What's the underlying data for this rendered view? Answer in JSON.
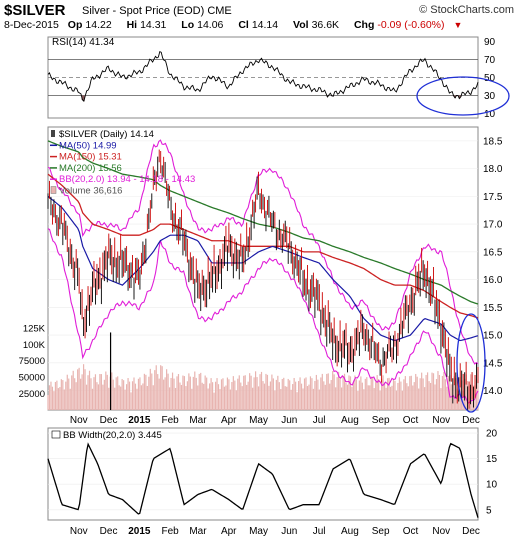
{
  "header": {
    "symbol": "$SILVER",
    "description": "Silver - Spot Price (EOD)",
    "exchange": "CME",
    "date": "8-Dec-2015",
    "open_label": "Op",
    "open": "14.22",
    "high_label": "Hi",
    "high": "14.31",
    "low_label": "Lo",
    "low": "14.06",
    "close_label": "Cl",
    "close": "14.14",
    "vol_label": "Vol",
    "volume": "36.6K",
    "chg_label": "Chg",
    "change": "-0.09 (-0.60%)",
    "logo": "© StockCharts.com"
  },
  "colors": {
    "price_up": "#000000",
    "price_down": "#cc0000",
    "ma50": "#1a1aa6",
    "ma150": "#cc2222",
    "ma200": "#2a7a2a",
    "bb": "#e01ed8",
    "volume": "#e8b4b0",
    "rsi_fill": "#8b5a5a",
    "annotation": "#1f2fd6"
  },
  "chart_data": [
    {
      "type": "line",
      "panel": "rsi",
      "label": "RSI(14) 41.34",
      "ylim": [
        5,
        95
      ],
      "yticks": [
        90,
        70,
        50,
        30,
        10
      ],
      "grid": "horizontal at 70, 50 (dashed), 30",
      "x": [
        "2014-10-01",
        "2014-10-15",
        "2014-11-01",
        "2014-11-05",
        "2014-11-15",
        "2014-12-01",
        "2014-12-15",
        "2015-01-01",
        "2015-01-15",
        "2015-01-22",
        "2015-02-01",
        "2015-02-15",
        "2015-03-01",
        "2015-03-15",
        "2015-04-01",
        "2015-04-15",
        "2015-05-01",
        "2015-05-15",
        "2015-06-01",
        "2015-06-15",
        "2015-07-01",
        "2015-07-15",
        "2015-08-01",
        "2015-08-15",
        "2015-09-01",
        "2015-09-15",
        "2015-10-01",
        "2015-10-15",
        "2015-11-01",
        "2015-11-10",
        "2015-11-20",
        "2015-12-01",
        "2015-12-08"
      ],
      "y": [
        52,
        44,
        34,
        25,
        48,
        60,
        50,
        56,
        70,
        78,
        54,
        40,
        36,
        52,
        40,
        58,
        70,
        62,
        45,
        40,
        36,
        30,
        40,
        48,
        42,
        34,
        58,
        70,
        48,
        32,
        29,
        35,
        41.34
      ],
      "note": "RSI region below 30 shaded"
    },
    {
      "type": "line",
      "panel": "price",
      "legend": [
        {
          "key": "price",
          "label": "$SILVER (Daily) 14.14"
        },
        {
          "key": "ma50",
          "label": "MA(50) 14.99"
        },
        {
          "key": "ma150",
          "label": "MA(150) 15.31"
        },
        {
          "key": "ma200",
          "label": "MA(200) 15.56"
        },
        {
          "key": "bb",
          "label": "BB(20,2.0) 13.94 - 14.18 - 14.43"
        },
        {
          "key": "volume",
          "label": "Volume 36,616"
        }
      ],
      "ylim": [
        13.65,
        18.75
      ],
      "yticks": [
        18.5,
        18.0,
        17.5,
        17.0,
        16.5,
        16.0,
        15.5,
        15.0,
        14.5,
        14.0
      ],
      "volume_ticks": [
        "125K",
        "100K",
        "75000",
        "50000",
        "25000"
      ],
      "volume_tick_values": [
        125000,
        100000,
        75000,
        50000,
        25000
      ],
      "x": [
        "2014-10-01",
        "2014-10-15",
        "2014-11-01",
        "2014-11-05",
        "2014-11-15",
        "2014-12-01",
        "2014-12-15",
        "2015-01-01",
        "2015-01-15",
        "2015-01-22",
        "2015-02-01",
        "2015-02-15",
        "2015-03-01",
        "2015-03-15",
        "2015-04-01",
        "2015-04-15",
        "2015-05-01",
        "2015-05-15",
        "2015-06-01",
        "2015-06-15",
        "2015-07-01",
        "2015-07-15",
        "2015-08-01",
        "2015-08-15",
        "2015-09-01",
        "2015-09-15",
        "2015-10-01",
        "2015-10-15",
        "2015-11-01",
        "2015-11-10",
        "2015-11-20",
        "2015-12-01",
        "2015-12-08"
      ],
      "series": [
        {
          "key": "price",
          "values": [
            17.4,
            17.0,
            16.0,
            15.2,
            15.8,
            16.4,
            16.3,
            16.0,
            17.6,
            18.3,
            17.3,
            16.7,
            15.8,
            16.0,
            16.6,
            16.3,
            17.6,
            17.0,
            16.6,
            16.0,
            15.6,
            14.9,
            14.7,
            15.1,
            14.5,
            14.8,
            15.6,
            16.2,
            15.2,
            14.3,
            14.1,
            14.0,
            14.14
          ]
        },
        {
          "key": "ma50",
          "values": [
            17.5,
            17.3,
            16.9,
            16.6,
            16.2,
            16.0,
            15.9,
            16.2,
            16.5,
            16.7,
            16.8,
            16.8,
            16.7,
            16.3,
            16.3,
            16.3,
            16.5,
            16.6,
            16.5,
            16.4,
            16.3,
            16.0,
            15.7,
            15.3,
            15.0,
            14.9,
            15.0,
            15.3,
            15.2,
            15.0,
            14.9,
            14.95,
            14.99
          ]
        },
        {
          "key": "ma150",
          "values": [
            17.9,
            17.7,
            17.4,
            17.2,
            17.0,
            16.9,
            16.8,
            16.8,
            16.9,
            17.0,
            17.0,
            16.9,
            16.8,
            16.7,
            16.7,
            16.6,
            16.6,
            16.6,
            16.6,
            16.5,
            16.5,
            16.4,
            16.3,
            16.2,
            16.0,
            15.9,
            15.9,
            15.8,
            15.6,
            15.5,
            15.4,
            15.35,
            15.31
          ]
        },
        {
          "key": "ma200",
          "values": [
            18.5,
            18.4,
            18.3,
            18.2,
            18.1,
            18.0,
            17.9,
            17.85,
            17.8,
            17.7,
            17.6,
            17.5,
            17.4,
            17.3,
            17.2,
            17.1,
            17.0,
            16.95,
            16.85,
            16.75,
            16.7,
            16.6,
            16.5,
            16.4,
            16.3,
            16.2,
            16.1,
            16.0,
            15.9,
            15.8,
            15.7,
            15.6,
            15.56
          ]
        },
        {
          "key": "bb_upper",
          "values": [
            18.0,
            17.6,
            17.2,
            16.8,
            17.0,
            17.0,
            16.9,
            17.3,
            18.4,
            18.5,
            18.3,
            17.5,
            16.9,
            16.9,
            17.1,
            17.0,
            17.9,
            18.0,
            17.6,
            17.0,
            16.6,
            16.0,
            15.5,
            15.6,
            15.1,
            15.2,
            16.1,
            16.6,
            16.5,
            15.9,
            15.1,
            14.6,
            14.43
          ]
        },
        {
          "key": "bb_lower",
          "values": [
            16.9,
            16.4,
            15.0,
            14.6,
            14.9,
            15.4,
            15.6,
            15.5,
            15.9,
            16.7,
            16.3,
            16.1,
            15.3,
            15.3,
            15.6,
            15.8,
            16.2,
            16.4,
            16.1,
            15.7,
            15.0,
            14.4,
            14.1,
            14.4,
            14.1,
            14.2,
            14.6,
            15.1,
            14.6,
            13.9,
            13.9,
            13.8,
            13.94
          ]
        }
      ],
      "volume": [
        35000,
        40000,
        55000,
        60000,
        45000,
        50000,
        40000,
        42000,
        55000,
        60000,
        48000,
        45000,
        50000,
        40000,
        42000,
        45000,
        50000,
        45000,
        40000,
        42000,
        45000,
        50000,
        45000,
        42000,
        45000,
        40000,
        45000,
        48000,
        50000,
        45000,
        42000,
        48000,
        36616
      ],
      "annotation": "blue ellipses highlight RSI below 30 and price near lower Bollinger Band"
    },
    {
      "type": "line",
      "panel": "bbwidth",
      "label": "BB Width(20,2.0) 3.445",
      "ylim": [
        3,
        21
      ],
      "yticks": [
        20,
        15,
        10,
        5
      ],
      "x": [
        "2014-10-01",
        "2014-10-15",
        "2014-11-01",
        "2014-11-10",
        "2014-11-20",
        "2014-12-01",
        "2014-12-15",
        "2015-01-01",
        "2015-01-15",
        "2015-02-01",
        "2015-02-15",
        "2015-03-01",
        "2015-03-15",
        "2015-04-01",
        "2015-04-15",
        "2015-05-01",
        "2015-05-15",
        "2015-06-01",
        "2015-06-15",
        "2015-07-01",
        "2015-07-15",
        "2015-08-01",
        "2015-08-15",
        "2015-09-01",
        "2015-09-15",
        "2015-10-01",
        "2015-10-15",
        "2015-11-01",
        "2015-11-10",
        "2015-11-20",
        "2015-12-01",
        "2015-12-08"
      ],
      "y": [
        15,
        6,
        5,
        18,
        14,
        8,
        7,
        4,
        15,
        17,
        6,
        8,
        9,
        7,
        5,
        14,
        12,
        5,
        6,
        6,
        13,
        15,
        8,
        7,
        6,
        14,
        16,
        10,
        18,
        17,
        8,
        3.445
      ]
    }
  ],
  "x_axis": {
    "labels": [
      "Nov",
      "Dec",
      "2015",
      "Feb",
      "Mar",
      "Apr",
      "May",
      "Jun",
      "Jul",
      "Aug",
      "Sep",
      "Oct",
      "Nov",
      "Dec"
    ],
    "dates": [
      "2014-11-01",
      "2014-12-01",
      "2015-01-01",
      "2015-02-01",
      "2015-03-01",
      "2015-04-01",
      "2015-05-01",
      "2015-06-01",
      "2015-07-01",
      "2015-08-01",
      "2015-09-01",
      "2015-10-01",
      "2015-11-01",
      "2015-12-01"
    ],
    "bold": "2015"
  }
}
